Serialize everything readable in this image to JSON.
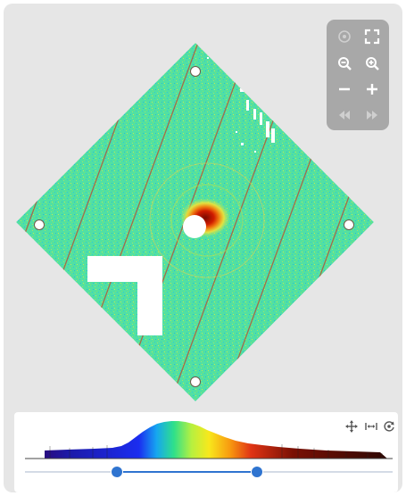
{
  "viewer": {
    "detector": {
      "mask_holes": 4,
      "panel_gap_lines": 11,
      "base_color": "#4fe0a4",
      "beam_center_color": "#d01c00"
    },
    "toolbar": {
      "buttons": [
        {
          "name": "crosshair-toggle-button",
          "icon": "crosshair-icon",
          "enabled": false
        },
        {
          "name": "fullscreen-button",
          "icon": "fullscreen-icon",
          "enabled": true
        },
        {
          "name": "zoom-out-button",
          "icon": "zoom-out-icon",
          "enabled": true
        },
        {
          "name": "zoom-in-button",
          "icon": "zoom-in-icon",
          "enabled": true
        },
        {
          "name": "contrast-decrease-button",
          "icon": "minus-icon",
          "enabled": true
        },
        {
          "name": "contrast-increase-button",
          "icon": "plus-icon",
          "enabled": true
        },
        {
          "name": "previous-frame-button",
          "icon": "rewind-icon",
          "enabled": false
        },
        {
          "name": "next-frame-button",
          "icon": "fast-forward-icon",
          "enabled": false
        }
      ]
    }
  },
  "histogram": {
    "tools": [
      "pan-icon",
      "fit-range-icon",
      "reset-view-icon"
    ],
    "colormap": [
      "#2a0a7a",
      "#1b2df0",
      "#16a6f0",
      "#2fe08a",
      "#b6f040",
      "#f8e81c",
      "#f89a10",
      "#e03414",
      "#7a1004"
    ],
    "range_slider": {
      "min": 0,
      "max": 1,
      "low": 0.25,
      "high": 0.63
    }
  },
  "colors": {
    "accent": "#2f74d0",
    "panel_background": "#e6e6e6"
  }
}
